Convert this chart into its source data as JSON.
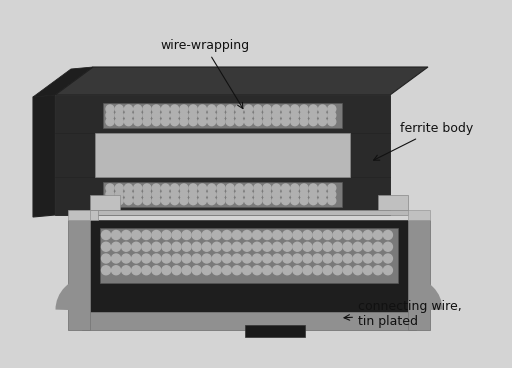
{
  "background_color": "#d4d4d4",
  "labels": {
    "wire_wrapping": "wire-wrapping",
    "ferrite_body": "ferrite body",
    "connecting_wire": "connecting wire,\ntin plated"
  },
  "colors": {
    "dark_top": "#383838",
    "dark_front": "#2a2a2a",
    "dark_side_left": "#1e1e1e",
    "gray_face": "#a0a0a0",
    "gray_face_light": "#b8b8b8",
    "coil_bg": "#7a7a7a",
    "coil_dot": "#b0b0b0",
    "connector_outer": "#909090",
    "connector_inner_dark": "#1e1e1e",
    "connector_light": "#c0c0c0",
    "connector_mid": "#a0a0a0"
  },
  "font_size_label": 9,
  "arrow_color": "#111111"
}
